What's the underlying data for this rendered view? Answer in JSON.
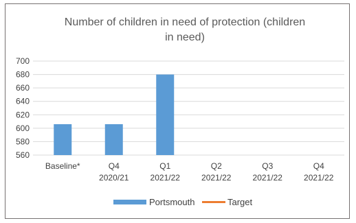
{
  "chart_data": {
    "type": "bar",
    "title_lines": [
      "Number of children in need of protection (children",
      "in need)"
    ],
    "categories": [
      [
        "Baseline*"
      ],
      [
        "Q4",
        "2020/21"
      ],
      [
        "Q1",
        "2021/22"
      ],
      [
        "Q2",
        "2021/22"
      ],
      [
        "Q3",
        "2021/22"
      ],
      [
        "Q4",
        "2021/22"
      ]
    ],
    "series": [
      {
        "name": "Portsmouth",
        "type": "bar",
        "color": "#5B9BD5",
        "values": [
          606,
          606,
          680,
          null,
          null,
          null
        ]
      },
      {
        "name": "Target",
        "type": "line",
        "color": "#ED7D31",
        "values": [
          null,
          null,
          null,
          null,
          null,
          null
        ]
      }
    ],
    "ylim": [
      560,
      700
    ],
    "yticks": [
      560,
      580,
      600,
      620,
      640,
      660,
      680,
      700
    ],
    "grid": true,
    "legend_position": "bottom"
  }
}
